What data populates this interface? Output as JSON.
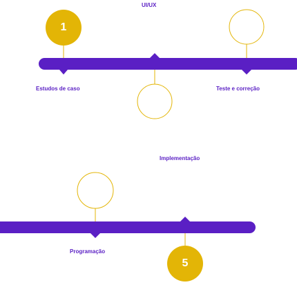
{
  "colors": {
    "bar": "#5a1fc4",
    "circle_filled": "#e3b506",
    "circle_outline": "#e3b506",
    "text": "#5a1fc4",
    "number_text": "#ffffff"
  },
  "steps": [
    {
      "number": "1",
      "label": "UI/UX",
      "filled": true
    },
    {
      "number": "",
      "label": "Teste e correção",
      "filled": false
    },
    {
      "number": "",
      "label": "Estudos de caso",
      "filled": false
    },
    {
      "number": "",
      "label": "Implementação",
      "filled": false
    },
    {
      "number": "",
      "label": "Programação",
      "filled": false
    },
    {
      "number": "5",
      "label": "",
      "filled": true
    }
  ]
}
